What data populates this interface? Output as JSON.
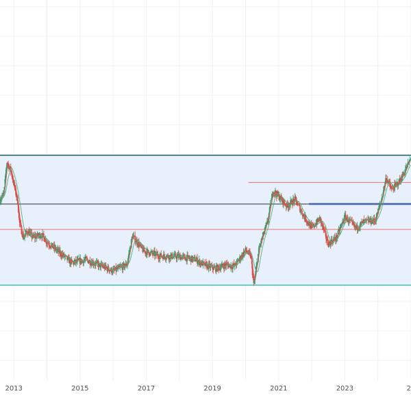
{
  "chart_data": {
    "type": "candlestick",
    "x_axis": {
      "type": "time",
      "range": [
        "2012-08-01",
        "2024-12-31"
      ],
      "ticks": [
        "2013",
        "2015",
        "2017",
        "2019",
        "2021",
        "2023",
        "2"
      ]
    },
    "y_axis": {
      "visible": false,
      "range": [
        0,
        600
      ]
    },
    "grid": true,
    "colors": {
      "up": "#2e9e6b",
      "down": "#e0443f",
      "ma_green": "#4caf7d",
      "ma_red": "#e35b5b",
      "channel_fill": "#e8f0fb",
      "channel_edge": "#1f5f5f",
      "channel_floor": "#3cc7c0",
      "support_dark": "#2b2f3a",
      "support_red": "#e57373",
      "support_blue": "#5b7fd6"
    },
    "channel": {
      "top": 355,
      "bottom": 150
    },
    "levels": [
      {
        "name": "horizontal-black",
        "value": 278,
        "color": "#2b2f3a",
        "x_start": "2012-08-01",
        "x_end": "2024-12-31"
      },
      {
        "name": "horizontal-red-low",
        "value": 238,
        "color": "#e57373",
        "x_start": "2012-08-01",
        "x_end": "2024-12-31"
      },
      {
        "name": "horizontal-red-high",
        "value": 312,
        "color": "#e57373",
        "x_start": "2020-02-01",
        "x_end": "2024-12-31"
      },
      {
        "name": "horizontal-blue-1",
        "value": 279,
        "color": "#5b7fd6",
        "x_start": "2021-12-01",
        "x_end": "2024-12-31"
      },
      {
        "name": "horizontal-blue-2",
        "value": 277,
        "color": "#5b7fd6",
        "x_start": "2021-12-01",
        "x_end": "2024-12-31"
      }
    ],
    "price_path": [
      [
        "2012-08-01",
        285
      ],
      [
        "2012-09-15",
        295
      ],
      [
        "2012-10-15",
        345
      ],
      [
        "2012-12-01",
        330
      ],
      [
        "2013-01-15",
        300
      ],
      [
        "2013-02-15",
        280
      ],
      [
        "2013-03-01",
        250
      ],
      [
        "2013-04-15",
        225
      ],
      [
        "2013-06-01",
        235
      ],
      [
        "2013-08-01",
        225
      ],
      [
        "2013-11-01",
        230
      ],
      [
        "2014-01-01",
        218
      ],
      [
        "2014-06-01",
        200
      ],
      [
        "2014-10-01",
        185
      ],
      [
        "2015-03-01",
        190
      ],
      [
        "2015-09-01",
        180
      ],
      [
        "2016-01-01",
        172
      ],
      [
        "2016-06-01",
        182
      ],
      [
        "2016-08-01",
        228
      ],
      [
        "2016-12-01",
        204
      ],
      [
        "2017-06-01",
        196
      ],
      [
        "2018-01-01",
        195
      ],
      [
        "2018-07-01",
        190
      ],
      [
        "2018-10-01",
        182
      ],
      [
        "2019-02-01",
        176
      ],
      [
        "2019-06-01",
        182
      ],
      [
        "2019-09-01",
        180
      ],
      [
        "2020-01-01",
        205
      ],
      [
        "2020-03-01",
        195
      ],
      [
        "2020-04-01",
        150
      ],
      [
        "2020-06-01",
        210
      ],
      [
        "2020-09-01",
        250
      ],
      [
        "2020-11-01",
        300
      ],
      [
        "2021-01-01",
        290
      ],
      [
        "2021-04-01",
        275
      ],
      [
        "2021-07-01",
        285
      ],
      [
        "2021-10-01",
        260
      ],
      [
        "2022-01-01",
        240
      ],
      [
        "2022-04-01",
        255
      ],
      [
        "2022-07-01",
        215
      ],
      [
        "2022-10-01",
        225
      ],
      [
        "2023-01-01",
        258
      ],
      [
        "2023-05-01",
        240
      ],
      [
        "2023-08-01",
        250
      ],
      [
        "2023-12-01",
        252
      ],
      [
        "2024-02-01",
        280
      ],
      [
        "2024-04-01",
        320
      ],
      [
        "2024-06-01",
        300
      ],
      [
        "2024-09-01",
        315
      ],
      [
        "2024-12-31",
        350
      ]
    ]
  }
}
